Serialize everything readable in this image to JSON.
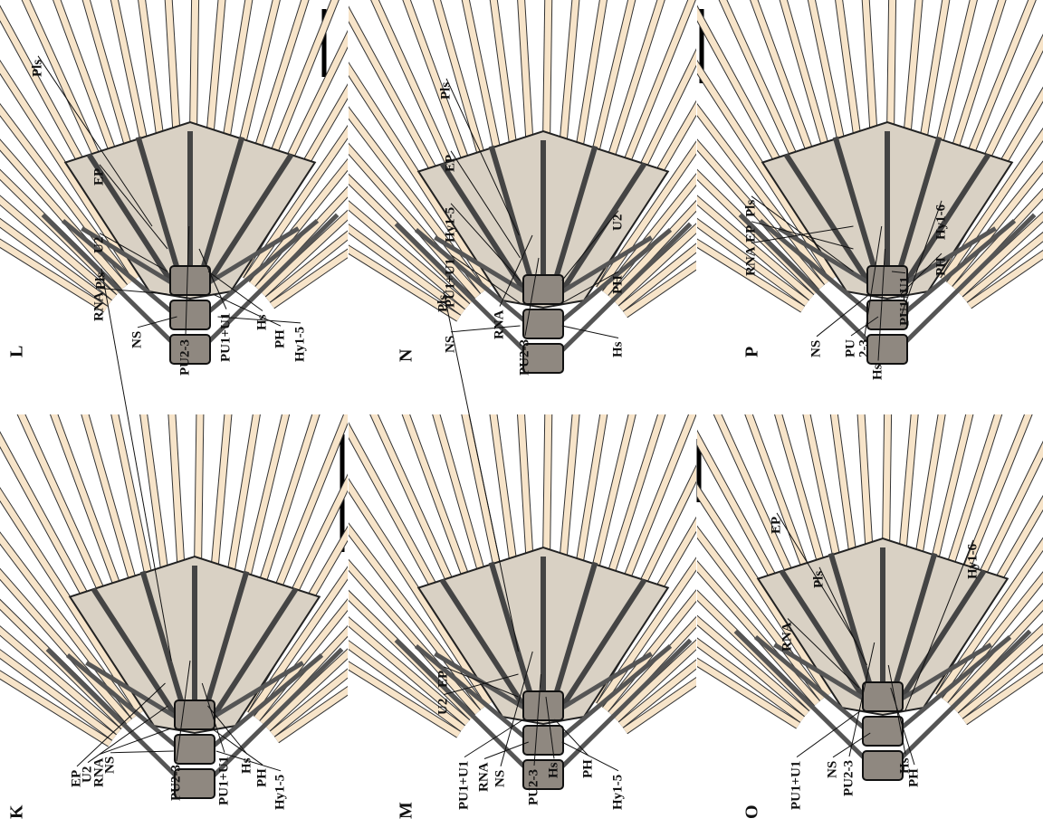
{
  "panels": [
    {
      "letter": "L",
      "labels": [
        "Pls",
        "EP",
        "U2",
        "RNA",
        "NS",
        "PU2-3",
        "PU1+U1",
        "Hs",
        "PH",
        "Hy1-5"
      ]
    },
    {
      "letter": "K",
      "labels": [
        "Pls",
        "EP",
        "U2",
        "RNA",
        "NS",
        "PU2-3",
        "PU1+U1",
        "Hs",
        "PH",
        "Hy1-5"
      ]
    },
    {
      "letter": "N",
      "labels": [
        "Pls",
        "EP",
        "Hy1-5",
        "PU1+U1",
        "NS",
        "RNA",
        "PU2-3",
        "U2",
        "PH",
        "Hs"
      ]
    },
    {
      "letter": "M",
      "labels": [
        "Pls",
        "U2",
        "EP",
        "PU1+U1",
        "RNA",
        "NS",
        "PU2-3",
        "Hs",
        "PH",
        "Hy1-5"
      ]
    },
    {
      "letter": "P",
      "labels": [
        "RNA",
        "EP",
        "Pls",
        "NS",
        "PU",
        "2-3",
        "Hs",
        "PU1+U1",
        "PH",
        "Hy1-6"
      ]
    },
    {
      "letter": "O",
      "labels": [
        "EP",
        "Pls",
        "RNA",
        "PU1+U1",
        "NS",
        "PU2-3",
        "Hs",
        "PH",
        "Hy1-6"
      ]
    }
  ]
}
